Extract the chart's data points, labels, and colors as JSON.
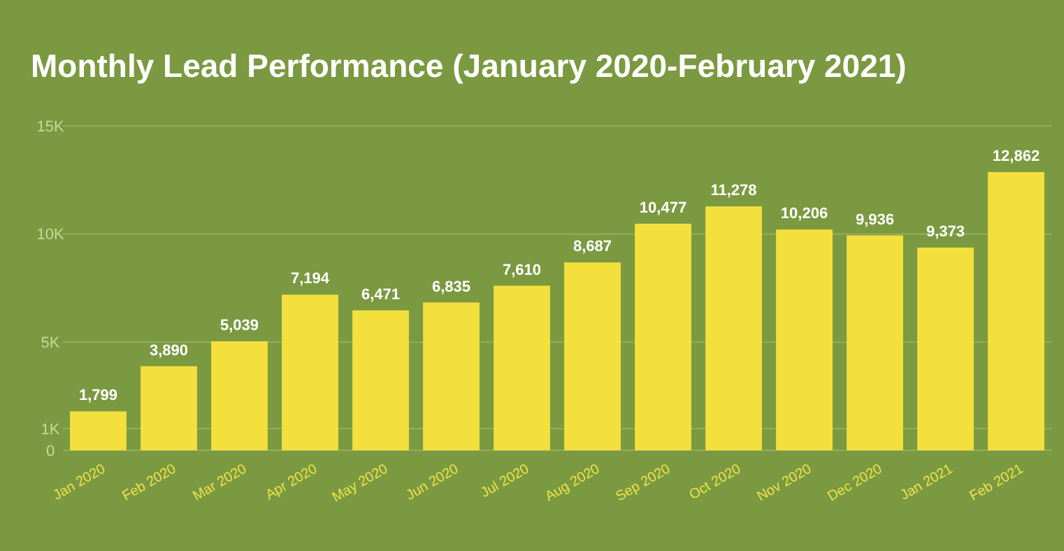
{
  "chart_data": {
    "type": "bar",
    "title": "Monthly Lead Performance (January 2020-February 2021)",
    "categories": [
      "Jan 2020",
      "Feb 2020",
      "Mar 2020",
      "Apr 2020",
      "May 2020",
      "Jun 2020",
      "Jul 2020",
      "Aug 2020",
      "Sep 2020",
      "Oct 2020",
      "Nov 2020",
      "Dec 2020",
      "Jan 2021",
      "Feb 2021"
    ],
    "values": [
      1799,
      3890,
      5039,
      7194,
      6471,
      6835,
      7610,
      8687,
      10477,
      11278,
      10206,
      9936,
      9373,
      12862
    ],
    "value_labels": [
      "1,799",
      "3,890",
      "5,039",
      "7,194",
      "6,471",
      "6,835",
      "7,610",
      "8,687",
      "10,477",
      "11,278",
      "10,206",
      "9,936",
      "9,373",
      "12,862"
    ],
    "color": "#f3e03c",
    "grid": "y",
    "ylim": [
      0,
      15000
    ],
    "yticks": [
      0,
      {
        "value": 1000,
        "label": "1K"
      },
      {
        "value": 5000,
        "label": "5K"
      },
      {
        "value": 10000,
        "label": "10K"
      },
      {
        "value": 15000,
        "label": "15K"
      }
    ]
  }
}
